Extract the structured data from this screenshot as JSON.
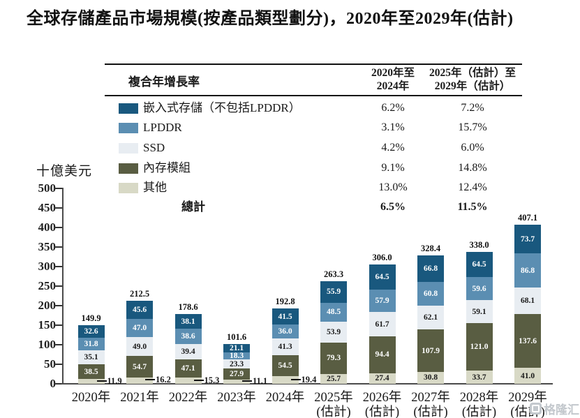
{
  "title": "全球存儲產品市場規模(按產品類型劃分)，2020年至2029年(估計)",
  "watermark": "格隆汇",
  "cagr_table": {
    "header": {
      "label": "複合年增長率",
      "col1_line1": "2020年至",
      "col1_line2": "2024年",
      "col2_line1": "2025年（估計）至",
      "col2_line2": "2029年（估計）"
    },
    "rows": [
      {
        "key": "embedded",
        "name": "嵌入式存儲（不包括LPDDR）",
        "color": "#19587e",
        "cagr_2020_2024": "6.2%",
        "cagr_2025_2029": "7.2%"
      },
      {
        "key": "lpddr",
        "name": "LPDDR",
        "color": "#5b8eb2",
        "cagr_2020_2024": "3.1%",
        "cagr_2025_2029": "15.7%"
      },
      {
        "key": "ssd",
        "name": "SSD",
        "color": "#e8edf2",
        "cagr_2020_2024": "4.2%",
        "cagr_2025_2029": "6.0%"
      },
      {
        "key": "memory-module",
        "name": "內存模組",
        "color": "#595d42",
        "cagr_2020_2024": "9.1%",
        "cagr_2025_2029": "14.8%"
      },
      {
        "key": "other",
        "name": "其他",
        "color": "#d8d9c6",
        "cagr_2020_2024": "13.0%",
        "cagr_2025_2029": "12.4%"
      }
    ],
    "total_row": {
      "label": "總計",
      "cagr_2020_2024": "6.5%",
      "cagr_2025_2029": "11.5%"
    }
  },
  "chart_data": {
    "type": "bar",
    "stacked": true,
    "title": "全球存儲產品市場規模(按產品類型劃分)，2020年至2029年(估計)",
    "unit_label": "十億美元",
    "ylim": [
      0,
      500
    ],
    "ytick_step": 50,
    "grid": false,
    "legend_position": "top-left table",
    "categories": [
      "2020年",
      "2021年",
      "2022年",
      "2023年",
      "2024年",
      "2025年",
      "2026年",
      "2027年",
      "2028年",
      "2029年"
    ],
    "estimated_flags": [
      false,
      false,
      false,
      false,
      false,
      true,
      true,
      true,
      true,
      true
    ],
    "estimated_suffix": "(估計)",
    "series": [
      {
        "key": "other",
        "name": "其他",
        "color": "#d8d9c6",
        "label_color": "#1a1a1a",
        "values": [
          11.9,
          16.2,
          15.3,
          11.1,
          19.4,
          25.7,
          27.4,
          30.8,
          33.7,
          41.0
        ]
      },
      {
        "key": "memory-module",
        "name": "內存模組",
        "color": "#595d42",
        "label_color": "#ffffff",
        "values": [
          38.5,
          54.7,
          47.1,
          27.9,
          54.5,
          79.3,
          94.4,
          107.9,
          121.0,
          137.6
        ]
      },
      {
        "key": "ssd",
        "name": "SSD",
        "color": "#e8edf2",
        "label_color": "#1a1a1a",
        "values": [
          35.1,
          49.0,
          39.4,
          23.3,
          41.3,
          53.9,
          61.7,
          62.1,
          59.1,
          68.1
        ]
      },
      {
        "key": "lpddr",
        "name": "LPDDR",
        "color": "#5b8eb2",
        "label_color": "#ffffff",
        "values": [
          31.8,
          47.0,
          38.6,
          18.3,
          36.0,
          48.5,
          57.9,
          60.8,
          59.6,
          86.8
        ]
      },
      {
        "key": "embedded",
        "name": "嵌入式存儲（不包括LPDDR）",
        "color": "#19587e",
        "label_color": "#ffffff",
        "values": [
          32.6,
          45.6,
          38.1,
          21.1,
          41.5,
          55.9,
          64.5,
          66.8,
          64.5,
          73.7
        ]
      }
    ],
    "totals": [
      149.9,
      212.5,
      178.6,
      101.6,
      192.8,
      263.3,
      306.0,
      328.4,
      338.0,
      407.1
    ]
  }
}
